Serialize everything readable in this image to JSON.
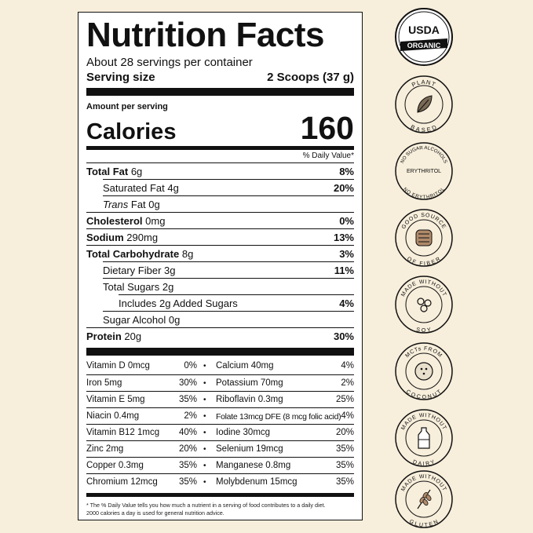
{
  "label": {
    "title": "Nutrition Facts",
    "servings": "About 28 servings per container",
    "serving_size_label": "Serving size",
    "serving_size_value": "2 Scoops (37 g)",
    "amount_per_serving": "Amount per serving",
    "calories_label": "Calories",
    "calories_value": "160",
    "dv_header": "% Daily Value*",
    "nutrients": [
      {
        "name": "Total Fat",
        "amount": "6g",
        "dv": "8%"
      },
      {
        "name": "Saturated Fat",
        "amount": "4g",
        "dv": "20%"
      },
      {
        "name": "Trans",
        "amount": "Fat 0g",
        "dv": ""
      },
      {
        "name": "Cholesterol",
        "amount": "0mg",
        "dv": "0%"
      },
      {
        "name": "Sodium",
        "amount": "290mg",
        "dv": "13%"
      },
      {
        "name": "Total Carbohydrate",
        "amount": "8g",
        "dv": "3%"
      },
      {
        "name": "Dietary Fiber",
        "amount": "3g",
        "dv": "11%"
      },
      {
        "name": "Total Sugars",
        "amount": "2g",
        "dv": ""
      },
      {
        "name": "Includes 2g Added Sugars",
        "amount": "",
        "dv": "4%"
      },
      {
        "name": "Sugar Alcohol",
        "amount": "0g",
        "dv": ""
      },
      {
        "name": "Protein",
        "amount": "20g",
        "dv": "30%"
      }
    ],
    "micros": [
      {
        "left": "Vitamin D 0mcg",
        "left_dv": "0%",
        "right": "Calcium 40mg",
        "right_dv": "4%"
      },
      {
        "left": "Iron 5mg",
        "left_dv": "30%",
        "right": "Potassium 70mg",
        "right_dv": "2%"
      },
      {
        "left": "Vitamin E 5mg",
        "left_dv": "35%",
        "right": "Riboflavin 0.3mg",
        "right_dv": "25%"
      },
      {
        "left": "Niacin 0.4mg",
        "left_dv": "2%",
        "right": "Folate 13mcg DFE (8 mcg folic acid)",
        "right_dv": "4%"
      },
      {
        "left": "Vitamin B12 1mcg",
        "left_dv": "40%",
        "right": "Iodine 30mcg",
        "right_dv": "20%"
      },
      {
        "left": "Zinc 2mg",
        "left_dv": "20%",
        "right": "Selenium 19mcg",
        "right_dv": "35%"
      },
      {
        "left": "Copper 0.3mg",
        "left_dv": "35%",
        "right": "Manganese 0.8mg",
        "right_dv": "35%"
      },
      {
        "left": "Chromium 12mcg",
        "left_dv": "35%",
        "right": "Molybdenum 15mcg",
        "right_dv": "35%"
      }
    ],
    "footnote_1": "* The % Daily Value tells you how much a nutrient in a serving of food contributes to a daily diet.",
    "footnote_2": "2000 calories a day is used for general nutrition advice."
  },
  "badges": [
    {
      "icon": "usda-organic-icon",
      "top": "USDA",
      "bottom": "ORGANIC"
    },
    {
      "icon": "plant-leaf-icon",
      "top": "PLANT",
      "bottom": "BASED"
    },
    {
      "icon": "no-sugar-alcohols-icon",
      "top": "NO SUGAR ALCOHOLS",
      "center": "ERYTHRITOL",
      "bottom": "NO ERYTHRITOL"
    },
    {
      "icon": "intestine-icon",
      "top": "GOOD SOURCE",
      "bottom": "OF FIBER"
    },
    {
      "icon": "soybean-icon",
      "top": "MADE WITHOUT",
      "bottom": "SOY"
    },
    {
      "icon": "coconut-icon",
      "top": "MCTs FROM",
      "bottom": "COCONUT"
    },
    {
      "icon": "milk-bottle-icon",
      "top": "MADE WITHOUT",
      "bottom": "DAIRY"
    },
    {
      "icon": "wheat-icon",
      "top": "MADE WITHOUT",
      "bottom": "GLUTEN"
    }
  ],
  "colors": {
    "background": "#f7eedb",
    "ink": "#111111",
    "badge_fill": "#f7eedb"
  }
}
